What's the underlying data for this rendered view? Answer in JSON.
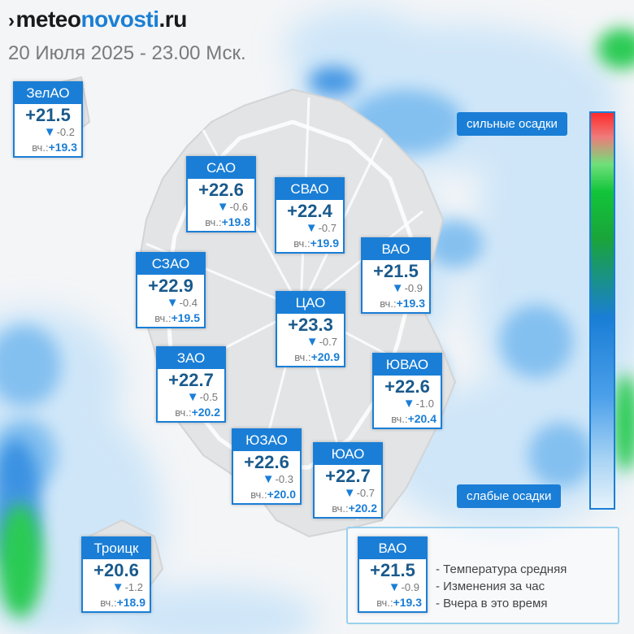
{
  "header": {
    "brand_prefix": "meteo",
    "brand_accent": "novosti",
    "brand_suffix": ".ru",
    "subtitle": "20 Июля 2025 - 23.00 Мск."
  },
  "districts": [
    {
      "name": "ЗелАО",
      "temp": "+21.5",
      "change": "-0.2",
      "yesterday": "+19.3"
    },
    {
      "name": "САО",
      "temp": "+22.6",
      "change": "-0.6",
      "yesterday": "+19.8"
    },
    {
      "name": "СВАО",
      "temp": "+22.4",
      "change": "-0.7",
      "yesterday": "+19.9"
    },
    {
      "name": "ВАО",
      "temp": "+21.5",
      "change": "-0.9",
      "yesterday": "+19.3"
    },
    {
      "name": "СЗАО",
      "temp": "+22.9",
      "change": "-0.4",
      "yesterday": "+19.5"
    },
    {
      "name": "ЦАО",
      "temp": "+23.3",
      "change": "-0.7",
      "yesterday": "+20.9"
    },
    {
      "name": "ЗАО",
      "temp": "+22.7",
      "change": "-0.5",
      "yesterday": "+20.2"
    },
    {
      "name": "ЮВАО",
      "temp": "+22.6",
      "change": "-1.0",
      "yesterday": "+20.4"
    },
    {
      "name": "ЮЗАО",
      "temp": "+22.6",
      "change": "-0.3",
      "yesterday": "+20.0"
    },
    {
      "name": "ЮАО",
      "temp": "+22.7",
      "change": "-0.7",
      "yesterday": "+20.2"
    },
    {
      "name": "Троицк",
      "temp": "+20.6",
      "change": "-1.2",
      "yesterday": "+18.9"
    }
  ],
  "yesterday_prefix": "вч.:",
  "trend_icon": "down-triangle-icon",
  "scale": {
    "top_label": "сильные осадки",
    "bottom_label": "слабые осадки",
    "colors": [
      "#ff2a2a",
      "#12c43a",
      "#1a7ed6",
      "#e6f3fb"
    ]
  },
  "legend": {
    "sample": {
      "name": "ВАО",
      "temp": "+21.5",
      "change": "-0.9",
      "yesterday": "+19.3"
    },
    "lines": [
      "- Температура средняя",
      "- Изменения за час",
      "- Вчера в это время"
    ]
  },
  "colors": {
    "accent": "#1a7ed6",
    "temp_text": "#1a5a8c"
  }
}
